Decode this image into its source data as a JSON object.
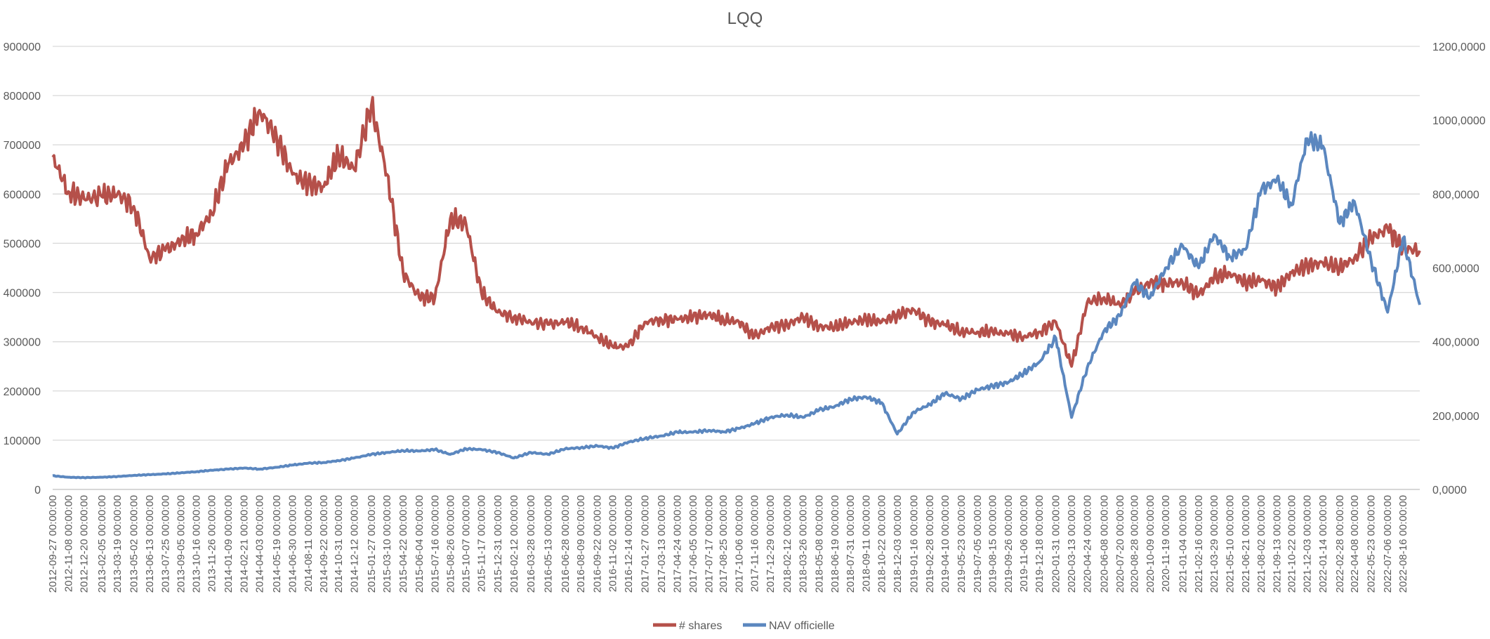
{
  "chart_data": {
    "type": "line",
    "title": "LQQ",
    "y_left": {
      "min": 0,
      "max": 900000,
      "ticks": [
        "0",
        "100000",
        "200000",
        "300000",
        "400000",
        "500000",
        "600000",
        "700000",
        "800000",
        "900000"
      ]
    },
    "y_right": {
      "min": 0,
      "max": 1200,
      "ticks": [
        "0,0000",
        "200,0000",
        "400,0000",
        "600,0000",
        "800,0000",
        "1000,0000",
        "1200,0000"
      ]
    },
    "x_tick_labels": [
      "2012-09-27 00:00:00",
      "2012-11-08 00:00:00",
      "2012-12-20 00:00:00",
      "2013-02-05 00:00:00",
      "2013-03-19 00:00:00",
      "2013-05-02 00:00:00",
      "2013-06-13 00:00:00",
      "2013-07-25 00:00:00",
      "2013-09-05 00:00:00",
      "2013-10-16 00:00:00",
      "2013-11-26 00:00:00",
      "2014-01-09 00:00:00",
      "2014-02-21 00:00:00",
      "2014-04-03 00:00:00",
      "2014-05-19 00:00:00",
      "2014-06-30 00:00:00",
      "2014-08-11 00:00:00",
      "2014-09-22 00:00:00",
      "2014-10-31 00:00:00",
      "2014-12-12 00:00:00",
      "2015-01-27 00:00:00",
      "2015-03-10 00:00:00",
      "2015-04-22 00:00:00",
      "2015-06-04 00:00:00",
      "2015-07-16 00:00:00",
      "2015-08-26 00:00:00",
      "2015-10-07 00:00:00",
      "2015-11-17 00:00:00",
      "2015-12-31 00:00:00",
      "2016-02-12 00:00:00",
      "2016-03-28 00:00:00",
      "2016-05-13 00:00:00",
      "2016-06-28 00:00:00",
      "2016-08-09 00:00:00",
      "2016-09-22 00:00:00",
      "2016-11-02 00:00:00",
      "2016-12-14 00:00:00",
      "2017-01-27 00:00:00",
      "2017-03-13 00:00:00",
      "2017-04-24 00:00:00",
      "2017-06-05 00:00:00",
      "2017-07-17 00:00:00",
      "2017-08-25 00:00:00",
      "2017-10-06 00:00:00",
      "2017-11-16 00:00:00",
      "2017-12-29 00:00:00",
      "2018-02-12 00:00:00",
      "2018-03-26 00:00:00",
      "2018-05-08 00:00:00",
      "2018-06-19 00:00:00",
      "2018-07-31 00:00:00",
      "2018-09-11 00:00:00",
      "2018-10-22 00:00:00",
      "2018-12-03 00:00:00",
      "2019-01-16 00:00:00",
      "2019-02-28 00:00:00",
      "2019-04-10 00:00:00",
      "2019-05-23 00:00:00",
      "2019-07-05 00:00:00",
      "2019-08-15 00:00:00",
      "2019-09-26 00:00:00",
      "2019-11-06 00:00:00",
      "2019-12-18 00:00:00",
      "2020-01-31 00:00:00",
      "2020-03-13 00:00:00",
      "2020-04-24 00:00:00",
      "2020-06-08 00:00:00",
      "2020-07-20 00:00:00",
      "2020-08-28 00:00:00",
      "2020-10-09 00:00:00",
      "2020-11-19 00:00:00",
      "2021-01-04 00:00:00",
      "2021-02-16 00:00:00",
      "2021-03-29 00:00:00",
      "2021-05-10 00:00:00",
      "2021-06-21 00:00:00",
      "2021-08-02 00:00:00",
      "2021-09-13 00:00:00",
      "2021-10-22 00:00:00",
      "2021-12-03 00:00:00",
      "2022-01-14 00:00:00",
      "2022-02-28 00:00:00",
      "2022-04-08 00:00:00",
      "2022-05-23 00:00:00",
      "2022-07-06 00:00:00",
      "2022-08-16 00:00:00"
    ],
    "x_dates": [
      "2012-09-27",
      "2012-11-08",
      "2012-12-20",
      "2013-02-05",
      "2013-03-19",
      "2013-05-02",
      "2013-06-13",
      "2013-07-25",
      "2013-09-05",
      "2013-10-16",
      "2013-11-26",
      "2014-01-09",
      "2014-02-21",
      "2014-04-03",
      "2014-05-19",
      "2014-06-30",
      "2014-08-11",
      "2014-09-22",
      "2014-10-31",
      "2014-12-12",
      "2015-01-27",
      "2015-03-10",
      "2015-04-22",
      "2015-06-04",
      "2015-07-16",
      "2015-08-26",
      "2015-10-07",
      "2015-11-17",
      "2015-12-31",
      "2016-02-12",
      "2016-03-28",
      "2016-05-13",
      "2016-06-28",
      "2016-08-09",
      "2016-09-22",
      "2016-11-02",
      "2016-12-14",
      "2017-01-27",
      "2017-03-13",
      "2017-04-24",
      "2017-06-05",
      "2017-07-17",
      "2017-08-25",
      "2017-10-06",
      "2017-11-16",
      "2017-12-29",
      "2018-02-12",
      "2018-03-26",
      "2018-05-08",
      "2018-06-19",
      "2018-07-31",
      "2018-09-11",
      "2018-10-22",
      "2018-12-03",
      "2019-01-16",
      "2019-02-28",
      "2019-04-10",
      "2019-05-23",
      "2019-07-05",
      "2019-08-15",
      "2019-09-26",
      "2019-11-06",
      "2019-12-18",
      "2020-01-31",
      "2020-03-13",
      "2020-04-24",
      "2020-06-08",
      "2020-07-20",
      "2020-08-28",
      "2020-10-09",
      "2020-11-19",
      "2021-01-04",
      "2021-02-16",
      "2021-03-29",
      "2021-05-10",
      "2021-06-21",
      "2021-08-02",
      "2021-09-13",
      "2021-10-22",
      "2021-12-03",
      "2022-01-14",
      "2022-02-28",
      "2022-04-08",
      "2022-05-23",
      "2022-07-06",
      "2022-08-16",
      "2022-09-30"
    ],
    "series": [
      {
        "name": "# shares",
        "axis": "left",
        "color": "#b5504a",
        "values": [
          675000,
          605000,
          590000,
          595000,
          600000,
          575000,
          470000,
          485000,
          505000,
          520000,
          560000,
          660000,
          700000,
          770000,
          715000,
          640000,
          620000,
          615000,
          680000,
          650000,
          780000,
          640000,
          440000,
          390000,
          390000,
          550000,
          540000,
          400000,
          360000,
          350000,
          340000,
          335000,
          340000,
          330000,
          310000,
          290000,
          290000,
          340000,
          345000,
          345000,
          350000,
          355000,
          345000,
          340000,
          310000,
          330000,
          335000,
          350000,
          330000,
          330000,
          340000,
          345000,
          340000,
          355000,
          365000,
          340000,
          335000,
          320000,
          320000,
          320000,
          315000,
          310000,
          320000,
          340000,
          250000,
          380000,
          390000,
          375000,
          400000,
          420000,
          420000,
          420000,
          395000,
          430000,
          440000,
          420000,
          425000,
          410000,
          440000,
          455000,
          460000,
          450000,
          470000,
          510000,
          530000,
          490000,
          485000
        ]
      },
      {
        "name": "NAV officielle",
        "axis": "right",
        "color": "#5b87bf",
        "values": [
          37,
          33,
          32,
          33,
          35,
          38,
          40,
          42,
          45,
          48,
          52,
          55,
          58,
          55,
          60,
          66,
          71,
          73,
          78,
          85,
          95,
          100,
          105,
          104,
          108,
          95,
          110,
          108,
          100,
          85,
          100,
          95,
          110,
          113,
          118,
          112,
          128,
          138,
          145,
          155,
          155,
          160,
          156,
          165,
          178,
          195,
          202,
          195,
          215,
          225,
          245,
          250,
          235,
          150,
          210,
          230,
          260,
          245,
          270,
          280,
          290,
          315,
          345,
          410,
          195,
          330,
          430,
          470,
          560,
          520,
          600,
          660,
          600,
          690,
          630,
          650,
          810,
          840,
          770,
          950,
          930,
          720,
          780,
          620,
          480,
          680,
          500
        ]
      }
    ],
    "legend": {
      "placement": "bottom",
      "entries": [
        "# shares",
        "NAV officielle"
      ]
    },
    "grid": true
  }
}
